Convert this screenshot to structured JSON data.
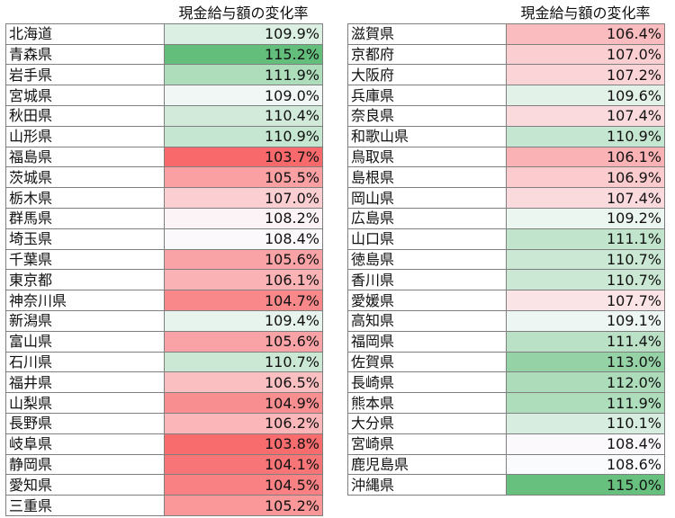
{
  "header": "現金給与額の変化率",
  "colors": {
    "low": "#f8696b",
    "mid": "#fcfcff",
    "high": "#63be7b"
  },
  "scale": {
    "min": 103.7,
    "mid": 108.5,
    "max": 115.2
  },
  "left_table": [
    {
      "name": "北海道",
      "value": "109.9%"
    },
    {
      "name": "青森県",
      "value": "115.2%"
    },
    {
      "name": "岩手県",
      "value": "111.9%"
    },
    {
      "name": "宮城県",
      "value": "109.0%"
    },
    {
      "name": "秋田県",
      "value": "110.4%"
    },
    {
      "name": "山形県",
      "value": "110.9%"
    },
    {
      "name": "福島県",
      "value": "103.7%"
    },
    {
      "name": "茨城県",
      "value": "105.5%"
    },
    {
      "name": "栃木県",
      "value": "107.0%"
    },
    {
      "name": "群馬県",
      "value": "108.2%"
    },
    {
      "name": "埼玉県",
      "value": "108.4%"
    },
    {
      "name": "千葉県",
      "value": "105.6%"
    },
    {
      "name": "東京都",
      "value": "106.1%"
    },
    {
      "name": "神奈川県",
      "value": "104.7%"
    },
    {
      "name": "新潟県",
      "value": "109.4%"
    },
    {
      "name": "富山県",
      "value": "105.6%"
    },
    {
      "name": "石川県",
      "value": "110.7%"
    },
    {
      "name": "福井県",
      "value": "106.5%"
    },
    {
      "name": "山梨県",
      "value": "104.9%"
    },
    {
      "name": "長野県",
      "value": "106.2%"
    },
    {
      "name": "岐阜県",
      "value": "103.8%"
    },
    {
      "name": "静岡県",
      "value": "104.1%"
    },
    {
      "name": "愛知県",
      "value": "104.5%"
    },
    {
      "name": "三重県",
      "value": "105.2%"
    }
  ],
  "right_table": [
    {
      "name": "滋賀県",
      "value": "106.4%"
    },
    {
      "name": "京都府",
      "value": "107.0%"
    },
    {
      "name": "大阪府",
      "value": "107.2%"
    },
    {
      "name": "兵庫県",
      "value": "109.6%"
    },
    {
      "name": "奈良県",
      "value": "107.4%"
    },
    {
      "name": "和歌山県",
      "value": "110.9%"
    },
    {
      "name": "鳥取県",
      "value": "106.1%"
    },
    {
      "name": "島根県",
      "value": "106.9%"
    },
    {
      "name": "岡山県",
      "value": "107.4%"
    },
    {
      "name": "広島県",
      "value": "109.2%"
    },
    {
      "name": "山口県",
      "value": "111.1%"
    },
    {
      "name": "徳島県",
      "value": "110.7%"
    },
    {
      "name": "香川県",
      "value": "110.7%"
    },
    {
      "name": "愛媛県",
      "value": "107.7%"
    },
    {
      "name": "高知県",
      "value": "109.1%"
    },
    {
      "name": "福岡県",
      "value": "111.4%"
    },
    {
      "name": "佐賀県",
      "value": "113.0%"
    },
    {
      "name": "長崎県",
      "value": "112.0%"
    },
    {
      "name": "熊本県",
      "value": "111.9%"
    },
    {
      "name": "大分県",
      "value": "110.1%"
    },
    {
      "name": "宮崎県",
      "value": "108.4%"
    },
    {
      "name": "鹿児島県",
      "value": "108.6%"
    },
    {
      "name": "沖縄県",
      "value": "115.0%"
    }
  ]
}
